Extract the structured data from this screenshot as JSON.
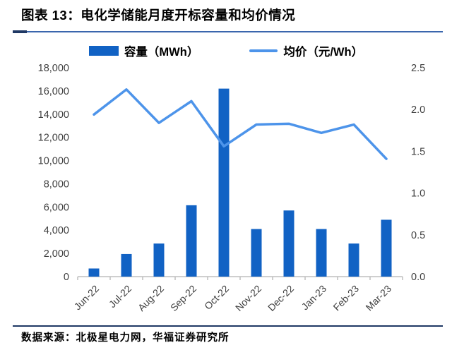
{
  "title": "图表 13：电化学储能月度开标容量和均价情况",
  "footer": {
    "source": "数据来源：北极星电力网，华福证券研究所"
  },
  "legend": {
    "items": [
      {
        "label": "容量（MWh）",
        "marker": "bar-swatch"
      },
      {
        "label": "均价（元/Wh）",
        "marker": "line-swatch"
      }
    ]
  },
  "colors": {
    "bar": "#1162C4",
    "line": "#4D94EA",
    "rule_dark": "#1F3864",
    "rule_light": "#3A66AD",
    "axis_line": "#BFBFBF",
    "axis_text": "#3F3F3F"
  },
  "chart_data": {
    "type": "bar",
    "subtype": "combo-bar-line",
    "categories": [
      "Jun-22",
      "Jul-22",
      "Aug-22",
      "Sep-22",
      "Oct-22",
      "Nov-22",
      "Dec-22",
      "Jan-23",
      "Feb-23",
      "Mar-23"
    ],
    "series": [
      {
        "name": "容量（MWh）",
        "type": "bar",
        "axis": "left",
        "values": [
          700,
          1950,
          2850,
          6150,
          16200,
          4100,
          5700,
          4100,
          2850,
          4900
        ]
      },
      {
        "name": "均价（元/Wh）",
        "type": "line",
        "axis": "right",
        "values": [
          1.94,
          2.24,
          1.84,
          2.1,
          1.56,
          1.82,
          1.83,
          1.72,
          1.82,
          1.41
        ]
      }
    ],
    "left_axis": {
      "min": 0,
      "max": 18000,
      "step": 2000,
      "tick_labels": [
        "0",
        "2,000",
        "4,000",
        "6,000",
        "8,000",
        "10,000",
        "12,000",
        "14,000",
        "16,000",
        "18,000"
      ]
    },
    "right_axis": {
      "min": 0,
      "max": 2.5,
      "step": 0.5,
      "tick_labels": [
        "0.0",
        "0.5",
        "1.0",
        "1.5",
        "2.0",
        "2.5"
      ]
    },
    "grid": false,
    "legend_position": "top"
  }
}
